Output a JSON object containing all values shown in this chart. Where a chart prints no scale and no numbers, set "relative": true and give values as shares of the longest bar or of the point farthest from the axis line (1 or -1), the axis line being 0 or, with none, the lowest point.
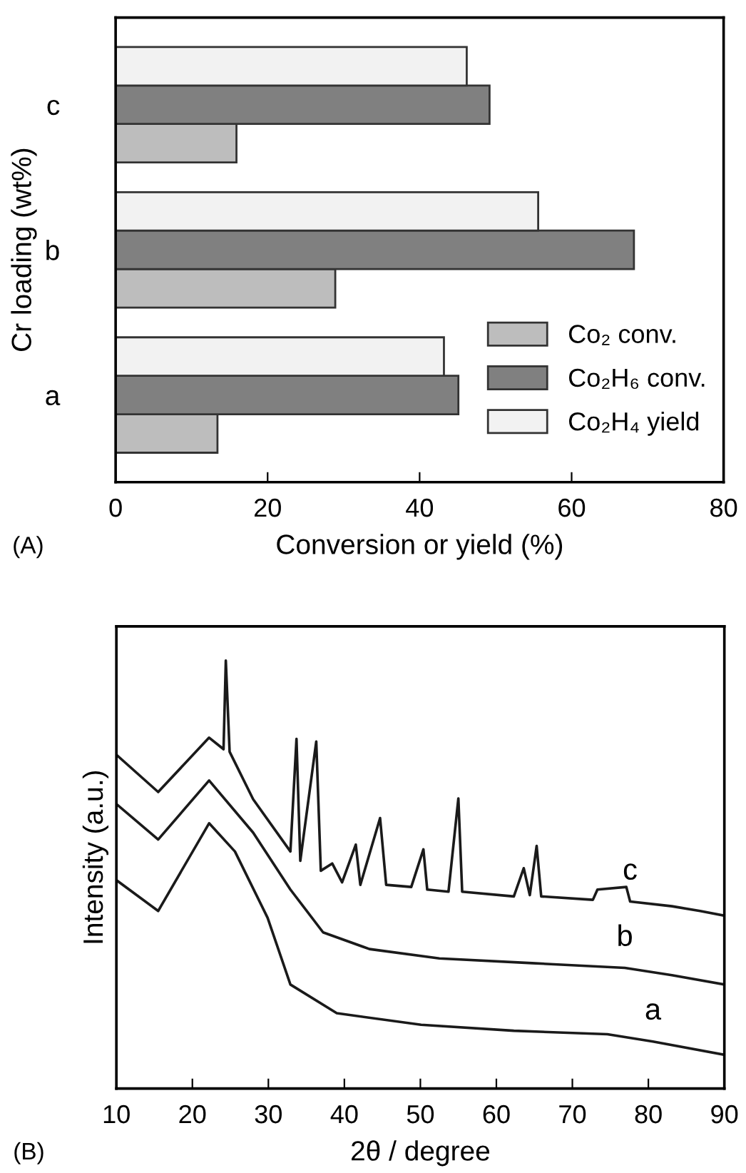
{
  "chart_data": [
    {
      "type": "bar",
      "orientation": "horizontal",
      "xlabel": "Conversion or yield (%)",
      "ylabel": "Cr loading (wt%)",
      "categories": [
        "c",
        "b",
        "a"
      ],
      "series": [
        {
          "name": "Co₂ conv.",
          "color": "#bdbdbd",
          "values": [
            15.9,
            28.9,
            13.4
          ]
        },
        {
          "name": "Co₂H₆ conv.",
          "color": "#808080",
          "values": [
            49.2,
            68.2,
            45.1
          ]
        },
        {
          "name": "Co₂H₄ yield",
          "color": "#f2f2f2",
          "values": [
            46.2,
            55.6,
            43.2
          ]
        }
      ],
      "xlim": [
        0,
        80
      ],
      "xticks": [
        0,
        20,
        40,
        60,
        80
      ],
      "legend": "bottom right",
      "grid": false,
      "annotations": [
        "(A)"
      ]
    },
    {
      "type": "line",
      "relative": true,
      "xlabel": "2θ / degree",
      "ylabel": "Intensity (a.u.)",
      "xlim": [
        10,
        90
      ],
      "xticks": [
        10,
        20,
        30,
        40,
        50,
        60,
        70,
        80,
        90
      ],
      "tick_labels": "x",
      "grid": false,
      "legend": false,
      "annotations": [
        "(B)"
      ],
      "series": [
        {
          "name": "c",
          "color": "#1a1a1a",
          "x": [
            10,
            15.5,
            22.2,
            24.1,
            24.4,
            24.9,
            28.0,
            32.9,
            33.7,
            34.2,
            36.3,
            36.9,
            38.4,
            39.7,
            41.5,
            42.1,
            44.7,
            45.5,
            48.8,
            50.4,
            50.9,
            53.7,
            55.0,
            55.5,
            62.3,
            63.6,
            64.4,
            65.3,
            65.9,
            72.7,
            73.3,
            77.1,
            77.6,
            83.1,
            86.8,
            90
          ],
          "values": [
            0.78,
            0.693,
            0.82,
            0.793,
            1.0,
            0.787,
            0.676,
            0.554,
            0.817,
            0.532,
            0.811,
            0.509,
            0.526,
            0.482,
            0.57,
            0.476,
            0.632,
            0.476,
            0.471,
            0.559,
            0.465,
            0.46,
            0.678,
            0.46,
            0.449,
            0.515,
            0.452,
            0.567,
            0.449,
            0.441,
            0.465,
            0.471,
            0.437,
            0.426,
            0.415,
            0.404
          ]
        },
        {
          "name": "b",
          "color": "#1a1a1a",
          "x": [
            10,
            15.5,
            22.2,
            28.0,
            32.9,
            37.2,
            43.3,
            52.5,
            64.7,
            76.9,
            83.1,
            90
          ],
          "values": [
            0.665,
            0.582,
            0.72,
            0.598,
            0.465,
            0.365,
            0.326,
            0.304,
            0.293,
            0.282,
            0.265,
            0.243
          ]
        },
        {
          "name": "a",
          "color": "#1a1a1a",
          "x": [
            10,
            15.5,
            22.2,
            25.6,
            29.9,
            32.9,
            39.0,
            50.1,
            62.3,
            74.6,
            80.6,
            90
          ],
          "values": [
            0.487,
            0.415,
            0.62,
            0.554,
            0.399,
            0.243,
            0.176,
            0.149,
            0.135,
            0.127,
            0.11,
            0.079
          ]
        }
      ]
    }
  ]
}
